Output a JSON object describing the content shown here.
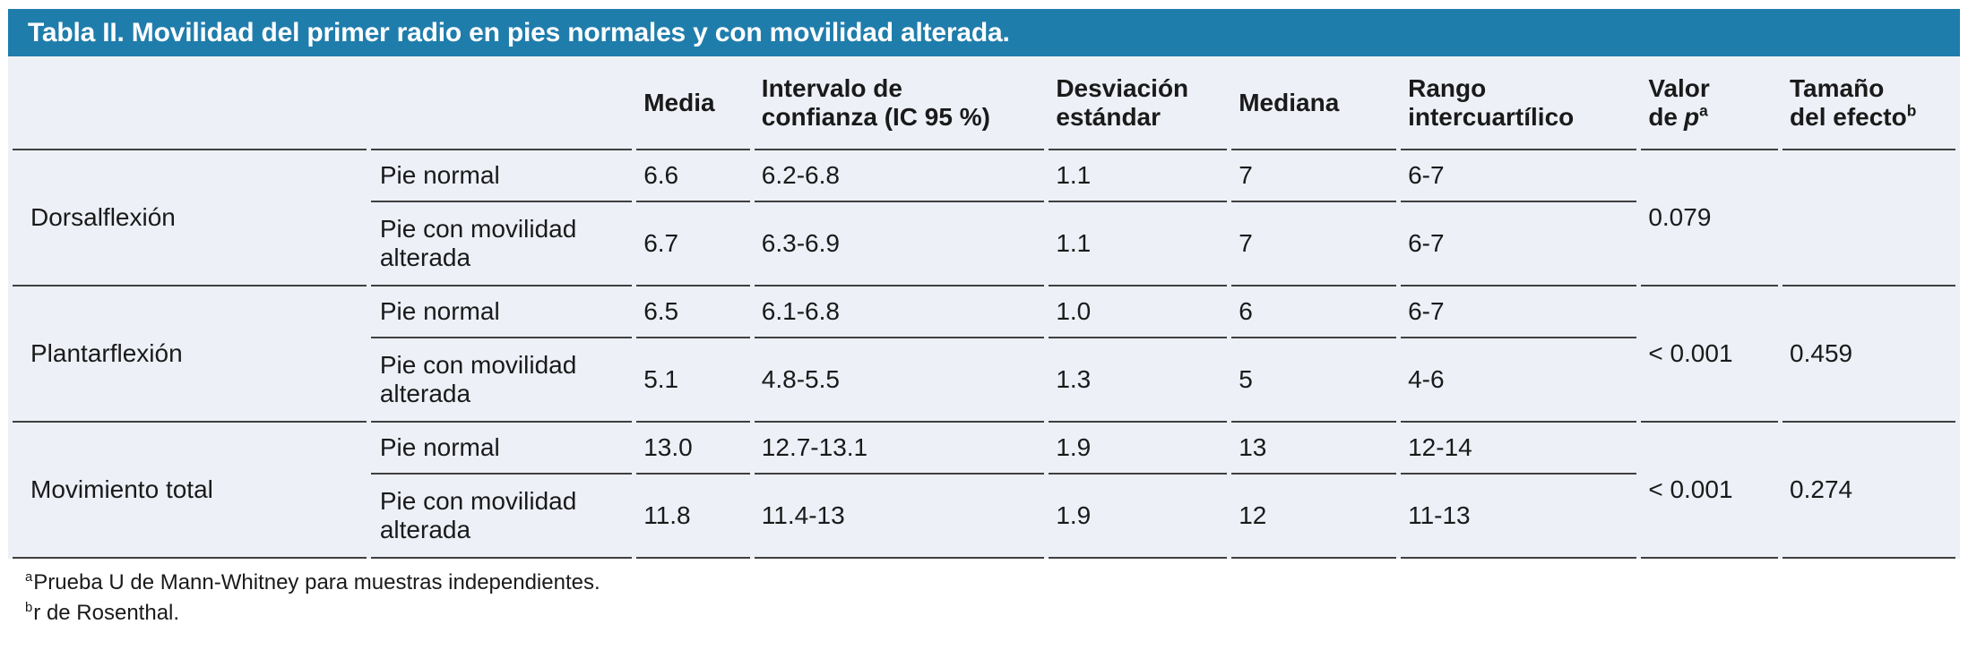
{
  "title": "Tabla II. Movilidad del primer radio en pies normales y con movilidad alterada.",
  "header": {
    "media": "Media",
    "ic": "Intervalo de\nconfianza (IC 95 %)",
    "sd": "Desviación\nestándar",
    "mediana": "Mediana",
    "rango": "Rango\nintercuartílico",
    "p_label": "Valor\nde",
    "p_symbol": "p",
    "p_sup": "a",
    "efecto_label": "Tamaño\ndel efecto",
    "efecto_sup": "b"
  },
  "groups": [
    {
      "label": "Dorsalflexión",
      "p_value": "0.079",
      "effect_size": "",
      "rows": [
        {
          "condition": "Pie normal",
          "media": "6.6",
          "ic95": "6.2-6.8",
          "sd": "1.1",
          "mediana": "7",
          "rango": "6-7"
        },
        {
          "condition": "Pie con movilidad alterada",
          "media": "6.7",
          "ic95": "6.3-6.9",
          "sd": "1.1",
          "mediana": "7",
          "rango": "6-7"
        }
      ]
    },
    {
      "label": "Plantarflexión",
      "p_value": "< 0.001",
      "effect_size": "0.459",
      "rows": [
        {
          "condition": "Pie normal",
          "media": "6.5",
          "ic95": "6.1-6.8",
          "sd": "1.0",
          "mediana": "6",
          "rango": "6-7"
        },
        {
          "condition": "Pie con movilidad alterada",
          "media": "5.1",
          "ic95": "4.8-5.5",
          "sd": "1.3",
          "mediana": "5",
          "rango": "4-6"
        }
      ]
    },
    {
      "label": "Movimiento total",
      "p_value": "< 0.001",
      "effect_size": "0.274",
      "rows": [
        {
          "condition": "Pie normal",
          "media": "13.0",
          "ic95": "12.7-13.1",
          "sd": "1.9",
          "mediana": "13",
          "rango": "12-14"
        },
        {
          "condition": "Pie con movilidad alterada",
          "media": "11.8",
          "ic95": "11.4-13",
          "sd": "1.9",
          "mediana": "12",
          "rango": "11-13"
        }
      ]
    }
  ],
  "footnotes": [
    {
      "sup": "a",
      "text": "Prueba U de Mann-Whitney para muestras independientes."
    },
    {
      "sup": "b",
      "text": "r de Rosenthal."
    }
  ],
  "colors": {
    "title_bar": "#1f7dac",
    "body_bg": "#edf0f7",
    "rule": "#3f3f3f",
    "title_text": "#ffffff",
    "text": "#1a1a1a"
  }
}
